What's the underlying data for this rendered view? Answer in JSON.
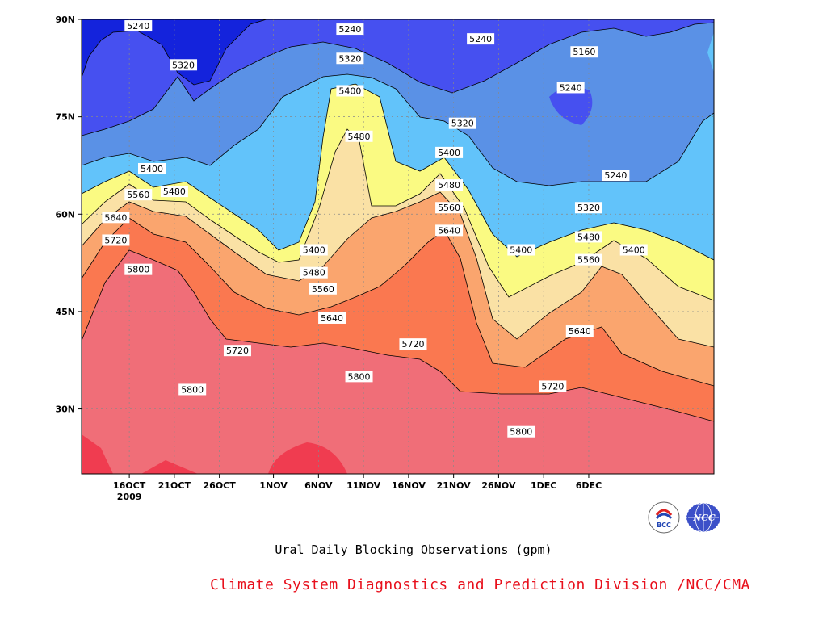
{
  "chart_data": {
    "type": "contour",
    "title": "Ural Daily Blocking Observations (gpm)",
    "x_ticks": [
      "16OCT",
      "21OCT",
      "26OCT",
      "1NOV",
      "6NOV",
      "11NOV",
      "16NOV",
      "21NOV",
      "26NOV",
      "1DEC",
      "6DEC"
    ],
    "x_year_label": "2009",
    "y_ticks": [
      "90N",
      "75N",
      "60N",
      "45N",
      "30N"
    ],
    "ylim": [
      20,
      90
    ],
    "contour_levels": [
      5160,
      5240,
      5320,
      5400,
      5480,
      5560,
      5640,
      5720,
      5800,
      5880
    ],
    "level_colors": {
      "below_5160": "#0a1470",
      "5160_5240": "#1423dc",
      "5240_5320": "#4650f0",
      "5320_5400": "#5a91e6",
      "5400_5480": "#62c3fa",
      "5480_5560": "#fafa82",
      "5560_5640": "#fae1a5",
      "5640_5720": "#faa56e",
      "5720_5800": "#fa7850",
      "5800_5880": "#f06e78",
      "above_5880": "#f03c50"
    },
    "contour_labels": [
      {
        "text": "5240",
        "lon_day": 16.0,
        "lat": 89
      },
      {
        "text": "5320",
        "lon_day": 21.0,
        "lat": 83
      },
      {
        "text": "5400",
        "lon_day": 17.5,
        "lat": 67
      },
      {
        "text": "5480",
        "lon_day": 20.0,
        "lat": 63.5
      },
      {
        "text": "5560",
        "lon_day": 16.0,
        "lat": 63
      },
      {
        "text": "5640",
        "lon_day": 13.5,
        "lat": 59.5
      },
      {
        "text": "5720",
        "lon_day": 13.5,
        "lat": 56
      },
      {
        "text": "5800",
        "lon_day": 16.0,
        "lat": 51.5
      },
      {
        "text": "5720",
        "lon_day": 27.0,
        "lat": 39
      },
      {
        "text": "5800",
        "lon_day": 22.0,
        "lat": 33
      },
      {
        "text": "5400",
        "lon_day": 35.5,
        "lat": 54.5
      },
      {
        "text": "5480",
        "lon_day": 35.5,
        "lat": 51
      },
      {
        "text": "5560",
        "lon_day": 36.5,
        "lat": 48.5
      },
      {
        "text": "5640",
        "lon_day": 37.5,
        "lat": 44
      },
      {
        "text": "5240",
        "lon_day": 39.5,
        "lat": 88.5
      },
      {
        "text": "5320",
        "lon_day": 39.5,
        "lat": 84
      },
      {
        "text": "5400",
        "lon_day": 39.5,
        "lat": 79
      },
      {
        "text": "5480",
        "lon_day": 40.5,
        "lat": 72
      },
      {
        "text": "5800",
        "lon_day": 40.5,
        "lat": 35
      },
      {
        "text": "5720",
        "lon_day": 46.5,
        "lat": 40
      },
      {
        "text": "5240",
        "lon_day": 54.0,
        "lat": 87
      },
      {
        "text": "5320",
        "lon_day": 52.0,
        "lat": 74
      },
      {
        "text": "5400",
        "lon_day": 50.5,
        "lat": 69.5
      },
      {
        "text": "5480",
        "lon_day": 50.5,
        "lat": 64.5
      },
      {
        "text": "5560",
        "lon_day": 50.5,
        "lat": 61
      },
      {
        "text": "5640",
        "lon_day": 50.5,
        "lat": 57.5
      },
      {
        "text": "5400",
        "lon_day": 58.5,
        "lat": 54.5
      },
      {
        "text": "5160",
        "lon_day": 65.5,
        "lat": 85
      },
      {
        "text": "5240",
        "lon_day": 64.0,
        "lat": 79.5
      },
      {
        "text": "5240",
        "lon_day": 69.0,
        "lat": 66
      },
      {
        "text": "5320",
        "lon_day": 66.0,
        "lat": 61
      },
      {
        "text": "5480",
        "lon_day": 66.0,
        "lat": 56.5
      },
      {
        "text": "5560",
        "lon_day": 66.0,
        "lat": 53
      },
      {
        "text": "5400",
        "lon_day": 71.0,
        "lat": 54.5
      },
      {
        "text": "5640",
        "lon_day": 65.0,
        "lat": 42
      },
      {
        "text": "5720",
        "lon_day": 62.0,
        "lat": 33.5
      },
      {
        "text": "5800",
        "lon_day": 58.5,
        "lat": 26.5
      }
    ]
  },
  "footer": {
    "title": "Ural Daily Blocking Observations (gpm)",
    "credit": "Climate System Diagnostics and Prediction Division /NCC/CMA",
    "logo_left_text": "BCC",
    "logo_right_text": "NCC"
  }
}
